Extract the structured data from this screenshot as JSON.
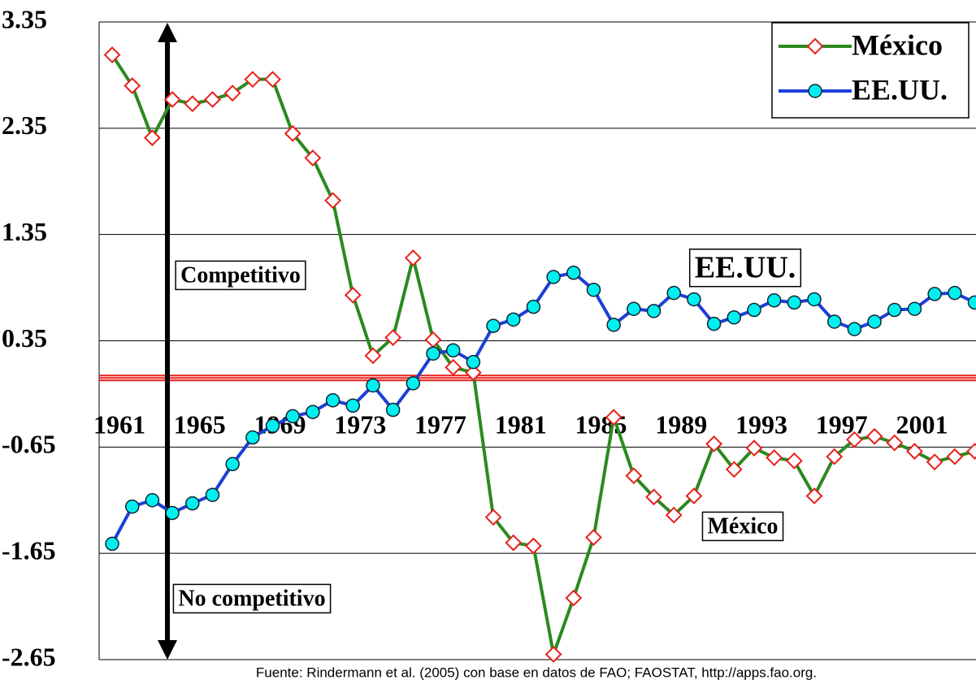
{
  "chart_data": {
    "type": "line",
    "x": [
      1961,
      1962,
      1963,
      1964,
      1965,
      1966,
      1967,
      1968,
      1969,
      1970,
      1971,
      1972,
      1973,
      1974,
      1975,
      1976,
      1977,
      1978,
      1979,
      1980,
      1981,
      1982,
      1983,
      1984,
      1985,
      1986,
      1987,
      1988,
      1989,
      1990,
      1991,
      1992,
      1993,
      1994,
      1995,
      1996,
      1997,
      1998,
      1999,
      2000,
      2001,
      2002,
      2003,
      2004
    ],
    "series": [
      {
        "name": "México",
        "color": "#2a8a1f",
        "marker_color": "#e8201c",
        "values": [
          3.04,
          2.75,
          2.26,
          2.62,
          2.58,
          2.62,
          2.68,
          2.81,
          2.81,
          2.3,
          2.07,
          1.67,
          0.78,
          0.21,
          0.38,
          1.13,
          0.36,
          0.1,
          0.05,
          -1.31,
          -1.55,
          -1.58,
          -2.6,
          -2.07,
          -1.5,
          -0.37,
          -0.92,
          -1.12,
          -1.29,
          -1.11,
          -0.62,
          -0.86,
          -0.66,
          -0.75,
          -0.78,
          -1.11,
          -0.74,
          -0.58,
          -0.55,
          -0.61,
          -0.69,
          -0.79,
          -0.74,
          -0.69
        ]
      },
      {
        "name": "EE.UU.",
        "color": "#1c3fd8",
        "marker_color": "#00f0f0",
        "values": [
          -1.56,
          -1.21,
          -1.15,
          -1.27,
          -1.18,
          -1.1,
          -0.81,
          -0.56,
          -0.45,
          -0.36,
          -0.32,
          -0.21,
          -0.26,
          -0.07,
          -0.3,
          -0.05,
          0.23,
          0.26,
          0.15,
          0.49,
          0.55,
          0.67,
          0.95,
          0.99,
          0.83,
          0.5,
          0.65,
          0.63,
          0.8,
          0.74,
          0.51,
          0.57,
          0.64,
          0.73,
          0.71,
          0.74,
          0.53,
          0.46,
          0.53,
          0.64,
          0.65,
          0.79,
          0.8,
          0.71
        ]
      }
    ],
    "xlim": [
      1960.35,
      2004.06
    ],
    "xticks": [
      1961,
      1965,
      1969,
      1973,
      1977,
      1981,
      1985,
      1989,
      1993,
      1997,
      2001
    ],
    "ylim": [
      -2.65,
      3.35
    ],
    "yticks": [
      -2.65,
      -1.65,
      -0.65,
      0.35,
      1.35,
      2.35,
      3.35
    ],
    "reference_line": 0,
    "reference_color": "#e8201c",
    "grid": true,
    "legend": "upper right",
    "annotations": [
      "Competitivo",
      "No competitivo",
      "EE.UU.",
      "México"
    ],
    "source": "Fuente: Rindermann et al.  (2005) con base en datos de FAO; FAOSTAT, http://apps.fao.org."
  }
}
